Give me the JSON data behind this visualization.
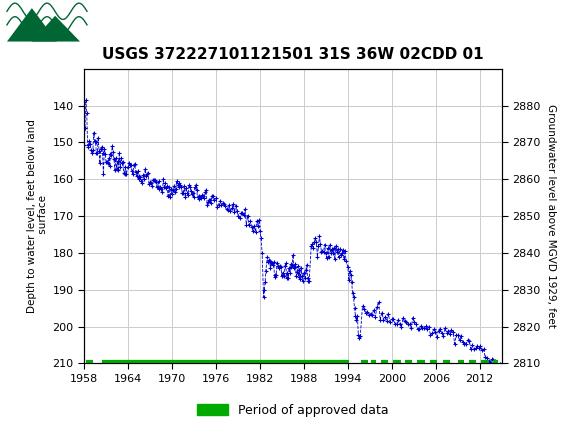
{
  "title": "USGS 372227101121501 31S 36W 02CDD 01",
  "ylabel_left": "Depth to water level, feet below land\n surface",
  "ylabel_right": "Groundwater level above MGVD 1929, feet",
  "ylim_left": [
    210,
    130
  ],
  "ylim_right": [
    2810,
    2890
  ],
  "xlim": [
    1958,
    2015
  ],
  "xticks": [
    1958,
    1964,
    1970,
    1976,
    1982,
    1988,
    1994,
    2000,
    2006,
    2012
  ],
  "yticks_left": [
    140,
    150,
    160,
    170,
    180,
    190,
    200,
    210
  ],
  "yticks_right": [
    2810,
    2820,
    2830,
    2840,
    2850,
    2860,
    2870,
    2880
  ],
  "data_color": "#0000cc",
  "approved_color": "#00aa00",
  "header_color": "#006633",
  "background_color": "#ffffff",
  "grid_color": "#cccccc",
  "legend_label": "Period of approved data",
  "approved_segments": [
    [
      1958.3,
      1959.2
    ],
    [
      1960.5,
      1994.2
    ],
    [
      1995.8,
      1996.8
    ],
    [
      1997.2,
      1997.9
    ],
    [
      1998.5,
      1999.5
    ],
    [
      2000.2,
      2001.2
    ],
    [
      2001.8,
      2002.8
    ],
    [
      2003.5,
      2004.5
    ],
    [
      2005.2,
      2006.2
    ],
    [
      2007.0,
      2008.0
    ],
    [
      2009.0,
      2009.8
    ],
    [
      2010.5,
      2011.5
    ],
    [
      2012.2,
      2013.2
    ],
    [
      2013.8,
      2014.5
    ]
  ]
}
